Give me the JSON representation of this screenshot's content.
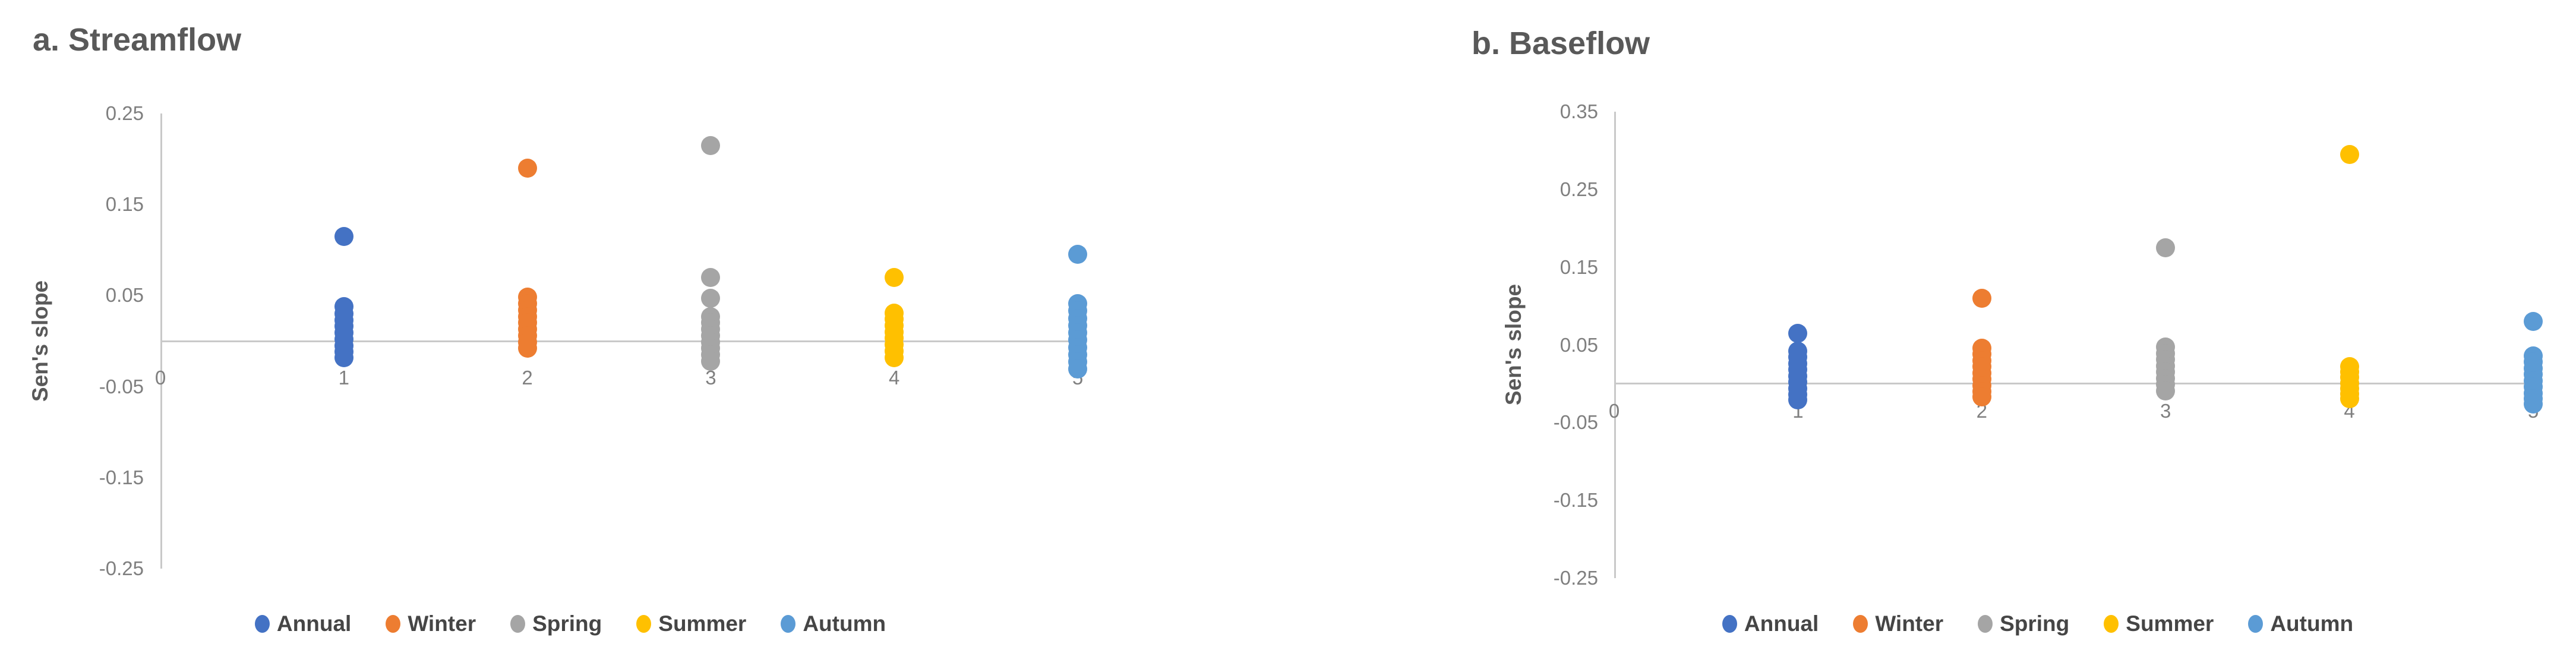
{
  "figure": {
    "background": "#FFFFFF",
    "title_color": "#595959",
    "tick_color": "#7F7F7F",
    "axis_line_color": "#C9C9C9",
    "legend_text_color": "#454545"
  },
  "chart_data": [
    {
      "type": "scatter",
      "title": "a. Streamflow",
      "ylabel": "Sen's slope",
      "xlabel": "",
      "ylim": [
        -0.25,
        0.25
      ],
      "xlim": [
        0,
        5
      ],
      "grid": false,
      "legend_position": "bottom",
      "yticks": [
        0.25,
        0.15,
        0.05,
        -0.05,
        -0.15,
        -0.25
      ],
      "ytick_labels": [
        "0.25",
        "0.15",
        "0.05",
        "-0.05",
        "-0.15",
        "-0.25"
      ],
      "xticks": [
        0,
        1,
        2,
        3,
        4,
        5
      ],
      "xtick_labels": [
        "0",
        "1",
        "2",
        "3",
        "4",
        "5"
      ],
      "series": [
        {
          "name": "Annual",
          "color": "#4472C4",
          "x": 1,
          "values": [
            0.115,
            0.038,
            0.03,
            0.023,
            0.016,
            0.009,
            0.002,
            -0.005,
            -0.012,
            -0.018
          ]
        },
        {
          "name": "Winter",
          "color": "#ED7D31",
          "x": 2,
          "values": [
            0.19,
            0.048,
            0.041,
            0.034,
            0.027,
            0.02,
            0.013,
            0.006,
            -0.001,
            -0.008
          ]
        },
        {
          "name": "Spring",
          "color": "#A5A5A5",
          "x": 3,
          "values": [
            0.215,
            0.07,
            0.047,
            0.027,
            0.02,
            0.013,
            0.006,
            -0.001,
            -0.008,
            -0.015,
            -0.022
          ]
        },
        {
          "name": "Summer",
          "color": "#FFC000",
          "x": 4,
          "values": [
            0.07,
            0.031,
            0.024,
            0.017,
            0.01,
            0.003,
            -0.004,
            -0.011,
            -0.018
          ]
        },
        {
          "name": "Autumn",
          "color": "#5B9BD5",
          "x": 5,
          "values": [
            0.095,
            0.041,
            0.033,
            0.025,
            0.017,
            0.009,
            0.001,
            -0.007,
            -0.015,
            -0.023,
            -0.031
          ]
        }
      ]
    },
    {
      "type": "scatter",
      "title": "b. Baseflow",
      "ylabel": "Sen's slope",
      "xlabel": "",
      "ylim": [
        -0.25,
        0.35
      ],
      "xlim": [
        0,
        5
      ],
      "grid": false,
      "legend_position": "bottom",
      "yticks": [
        0.35,
        0.25,
        0.15,
        0.05,
        -0.05,
        -0.15,
        -0.25
      ],
      "ytick_labels": [
        "0.35",
        "0.25",
        "0.15",
        "0.05",
        "-0.05",
        "-0.15",
        "-0.25"
      ],
      "xticks": [
        0,
        1,
        2,
        3,
        4,
        5
      ],
      "xtick_labels": [
        "0",
        "1",
        "2",
        "3",
        "4",
        "5"
      ],
      "series": [
        {
          "name": "Annual",
          "color": "#4472C4",
          "x": 1,
          "values": [
            0.065,
            0.042,
            0.034,
            0.026,
            0.018,
            0.01,
            0.002,
            -0.006,
            -0.014,
            -0.021
          ]
        },
        {
          "name": "Winter",
          "color": "#ED7D31",
          "x": 2,
          "values": [
            0.11,
            0.046,
            0.038,
            0.03,
            0.022,
            0.014,
            0.006,
            -0.002,
            -0.01,
            -0.017
          ]
        },
        {
          "name": "Spring",
          "color": "#A5A5A5",
          "x": 3,
          "values": [
            0.175,
            0.047,
            0.039,
            0.031,
            0.023,
            0.015,
            0.007,
            -0.001,
            -0.009
          ]
        },
        {
          "name": "Summer",
          "color": "#FFC000",
          "x": 4,
          "values": [
            0.295,
            0.022,
            0.015,
            0.008,
            0.001,
            -0.006,
            -0.013,
            -0.019
          ]
        },
        {
          "name": "Autumn",
          "color": "#5B9BD5",
          "x": 5,
          "values": [
            0.08,
            0.036,
            0.028,
            0.02,
            0.012,
            0.004,
            -0.004,
            -0.012,
            -0.019,
            -0.026
          ]
        }
      ]
    }
  ]
}
